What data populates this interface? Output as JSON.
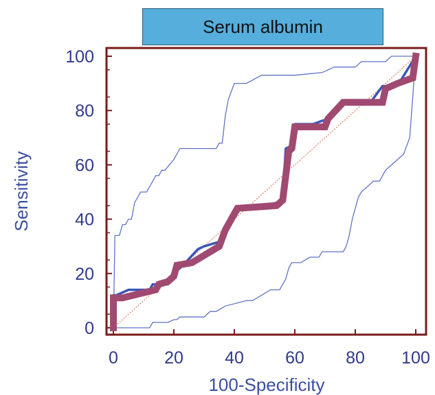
{
  "chart_data": {
    "type": "line",
    "title": "Serum albumin",
    "xlabel": "100-Specificity",
    "ylabel": "Sensitivity",
    "xlim": [
      0,
      100
    ],
    "ylim": [
      0,
      100
    ],
    "x_ticks": [
      0,
      20,
      40,
      60,
      80,
      100
    ],
    "y_ticks": [
      0,
      20,
      40,
      60,
      80,
      100
    ],
    "grid": false,
    "colors": {
      "frame": "#7a1a1a",
      "roc": "#3b55b5",
      "steps": "#a04a72",
      "ci": "#5f73c4",
      "diagonal": "#e07a5a",
      "tick_text": "#2f3a8c",
      "title_bg": "#55aedc"
    },
    "series": [
      {
        "kind": "roc",
        "x": [
          0,
          0,
          1,
          5,
          12,
          13,
          18,
          21,
          23,
          28,
          30,
          36,
          37,
          42,
          44,
          54,
          56,
          57,
          59,
          60,
          66,
          71,
          76,
          77,
          85,
          89,
          90,
          95,
          100
        ],
        "y": [
          0,
          12,
          12,
          14,
          14,
          16,
          16,
          21,
          23,
          29,
          30,
          32,
          35,
          44,
          44,
          46,
          47,
          66,
          67,
          75,
          75,
          77,
          83,
          83,
          83,
          89,
          89,
          91,
          100
        ]
      },
      {
        "kind": "roc_steps",
        "x": [
          0,
          0,
          3,
          14,
          15,
          18,
          20,
          21,
          26,
          35,
          36,
          37,
          41,
          54,
          56,
          58,
          59,
          60,
          70,
          71,
          76,
          89,
          90,
          94,
          99,
          100
        ],
        "y": [
          0,
          11,
          11,
          14,
          16,
          17,
          19,
          23,
          24,
          30,
          33,
          36,
          44,
          45,
          47,
          65,
          66,
          74,
          74,
          77,
          83,
          83,
          88,
          90,
          92,
          100
        ]
      },
      {
        "kind": "ci_upper",
        "x": [
          0,
          0.5,
          2,
          3,
          4,
          5,
          6,
          7,
          8,
          9,
          11,
          13,
          14,
          15,
          16,
          17,
          20,
          22,
          24,
          27,
          31,
          34,
          35,
          36,
          37,
          38,
          40,
          44,
          49,
          53,
          60,
          69,
          73,
          76,
          80,
          82,
          85,
          88,
          90,
          92,
          95,
          98,
          100
        ],
        "y": [
          0,
          34,
          34,
          38,
          38,
          40,
          40,
          46,
          48,
          50,
          50,
          54,
          56,
          56,
          58,
          58,
          62,
          66,
          66,
          66,
          66,
          66,
          68,
          68,
          78,
          84,
          90,
          90,
          93,
          93,
          93,
          94,
          96,
          96,
          96,
          98,
          98,
          98,
          98,
          100,
          100,
          100,
          100
        ]
      },
      {
        "kind": "ci_lower",
        "x": [
          0,
          5,
          12,
          13,
          18,
          20,
          21,
          22,
          30,
          32,
          34,
          37,
          44,
          46,
          49,
          52,
          55,
          57,
          58,
          59,
          62,
          65,
          66,
          68,
          69,
          70,
          71,
          74,
          76,
          77,
          78,
          79,
          80,
          81,
          82,
          84,
          86,
          88,
          89,
          90,
          92,
          94,
          96,
          98,
          100
        ],
        "y": [
          0,
          0,
          0,
          2,
          2,
          3,
          3,
          4,
          4,
          6,
          6,
          8,
          10,
          10,
          12,
          14,
          14,
          18,
          22,
          24,
          24,
          26,
          26,
          26,
          28,
          28,
          28,
          28,
          28,
          30,
          34,
          40,
          44,
          48,
          50,
          52,
          54,
          54,
          56,
          58,
          60,
          62,
          64,
          70,
          100
        ]
      },
      {
        "kind": "diagonal",
        "x": [
          0,
          100
        ],
        "y": [
          0,
          100
        ]
      }
    ]
  }
}
